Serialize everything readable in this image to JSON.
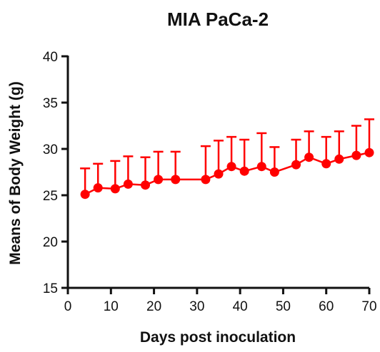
{
  "chart_data": {
    "type": "line",
    "title": "MIA PaCa-2",
    "xlabel": "Days post inoculation",
    "ylabel": "Means of Body Weight (g)",
    "xlim": [
      0,
      70
    ],
    "ylim": [
      15,
      40
    ],
    "xticks": [
      "0",
      "10",
      "20",
      "30",
      "40",
      "50",
      "60",
      "70"
    ],
    "yticks": [
      "15",
      "20",
      "25",
      "30",
      "35",
      "40"
    ],
    "color": "#ff0000",
    "grid": false,
    "legend": "none",
    "error_bars": "upper only",
    "series": [
      {
        "x": [
          4,
          7,
          11,
          14,
          18,
          21,
          25,
          32,
          35,
          38,
          41,
          45,
          48,
          53,
          56,
          60,
          63,
          67,
          70
        ],
        "y": [
          25.1,
          25.8,
          25.7,
          26.2,
          26.1,
          26.7,
          26.7,
          26.7,
          27.3,
          28.1,
          27.6,
          28.1,
          27.5,
          28.3,
          29.1,
          28.4,
          28.9,
          29.3,
          29.6
        ],
        "error": [
          2.8,
          2.6,
          3.0,
          3.0,
          3.0,
          3.0,
          3.0,
          3.6,
          3.6,
          3.2,
          3.4,
          3.6,
          2.7,
          2.7,
          2.8,
          2.9,
          3.0,
          3.2,
          3.6
        ]
      }
    ]
  }
}
